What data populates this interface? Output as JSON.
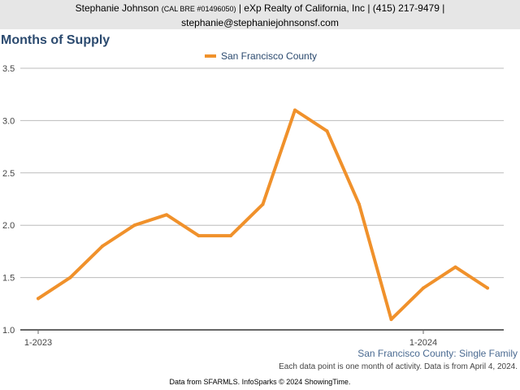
{
  "header": {
    "agent_name": "Stephanie Johnson",
    "license": "(CAL BRE #01496050)",
    "brokerage": "| eXp Realty of California, Inc | (415) 217-9479 |",
    "email": "stephanie@stephaniejohnsonsf.com"
  },
  "caption": "San Francisco County: Single Family",
  "note": "Each data point is one month of activity. Data is from April 4, 2024.",
  "footer": "Data from SFARMLS. InfoSparks © 2024 ShowingTime.",
  "colors": {
    "line": "#f0912b",
    "title": "#2b4a6f",
    "grid": "#bbbbbb"
  },
  "chart_data": {
    "type": "line",
    "title": "Months of Supply",
    "xlabel": "",
    "ylabel": "",
    "x": [
      "1-2023",
      "2-2023",
      "3-2023",
      "4-2023",
      "5-2023",
      "6-2023",
      "7-2023",
      "8-2023",
      "9-2023",
      "10-2023",
      "11-2023",
      "12-2023",
      "1-2024",
      "2-2024",
      "3-2024"
    ],
    "x_ticks": [
      "1-2023",
      "1-2024"
    ],
    "series": [
      {
        "name": "San Francisco County",
        "values": [
          1.3,
          1.5,
          1.8,
          2.0,
          2.1,
          1.9,
          1.9,
          2.2,
          3.1,
          2.9,
          2.2,
          1.1,
          1.4,
          1.6,
          1.4
        ]
      }
    ],
    "y_ticks": [
      "1.0",
      "1.5",
      "2.0",
      "2.5",
      "3.0",
      "3.5"
    ],
    "ylim": [
      1.0,
      3.5
    ],
    "grid": true,
    "legend_position": "top-center"
  }
}
